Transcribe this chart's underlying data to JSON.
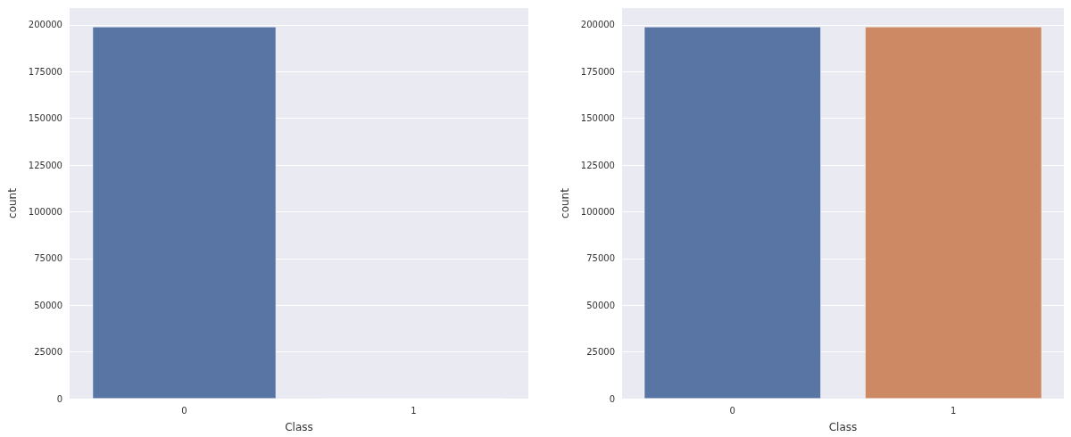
{
  "chart_data": [
    {
      "type": "bar",
      "categories": [
        "0",
        "1"
      ],
      "values": [
        199000,
        0
      ],
      "colors": [
        "#5975a4",
        "#cc8963"
      ],
      "xlabel": "Class",
      "ylabel": "count",
      "ylim": [
        0,
        209000
      ],
      "yticks": [
        0,
        25000,
        50000,
        75000,
        100000,
        125000,
        150000,
        175000,
        200000
      ],
      "grid": "y"
    },
    {
      "type": "bar",
      "categories": [
        "0",
        "1"
      ],
      "values": [
        199000,
        199000
      ],
      "colors": [
        "#5975a4",
        "#cc8963"
      ],
      "xlabel": "Class",
      "ylabel": "count",
      "ylim": [
        0,
        209000
      ],
      "yticks": [
        0,
        25000,
        50000,
        75000,
        100000,
        125000,
        150000,
        175000,
        200000
      ],
      "grid": "y"
    }
  ]
}
